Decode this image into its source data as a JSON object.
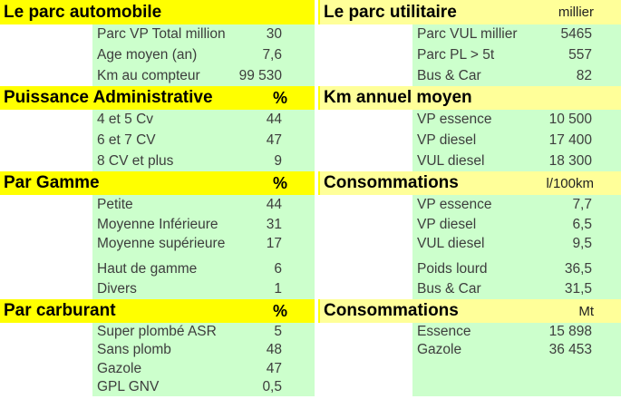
{
  "colors": {
    "header_yellow": "#FFFF00",
    "header_pale_yellow": "#FFFF99",
    "cell_green": "#CCFFCC"
  },
  "left_sections": [
    {
      "title": "Le parc automobile",
      "unit": "",
      "rows": [
        {
          "label": "Parc VP Total million",
          "value": "30"
        },
        {
          "label": "Age moyen (an)",
          "value": "7,6"
        },
        {
          "label": "Km au compteur",
          "value": "99 530"
        }
      ]
    },
    {
      "title": "Puissance Administrative",
      "unit": "%",
      "rows": [
        {
          "label": "4 et 5 Cv",
          "value": "44"
        },
        {
          "label": "6 et 7 CV",
          "value": "47"
        },
        {
          "label": "8 CV et plus",
          "value": "9"
        }
      ]
    },
    {
      "title": "Par Gamme",
      "unit": "%",
      "rows": [
        {
          "label": "Petite",
          "value": "44"
        },
        {
          "label": "Moyenne Inférieure",
          "value": "31"
        },
        {
          "label": "Moyenne supérieure",
          "value": "17"
        },
        {
          "label": "Haut de gamme",
          "value": "6"
        },
        {
          "label": "Divers",
          "value": "1"
        }
      ]
    },
    {
      "title": "Par carburant",
      "unit": "%",
      "rows": [
        {
          "label": "Super plombé ASR",
          "value": "5"
        },
        {
          "label": "Sans plomb",
          "value": "48"
        },
        {
          "label": "Gazole",
          "value": "47"
        },
        {
          "label": "GPL GNV",
          "value": "0,5"
        }
      ]
    }
  ],
  "right_sections": [
    {
      "title": "Le parc utilitaire",
      "unit": "millier",
      "rows": [
        {
          "label": "Parc VUL millier",
          "value": "5465"
        },
        {
          "label": "Parc PL > 5t",
          "value": "557"
        },
        {
          "label": "Bus & Car",
          "value": "82"
        }
      ]
    },
    {
      "title": "Km annuel moyen",
      "unit": "",
      "rows": [
        {
          "label": "VP essence",
          "value": "10 500"
        },
        {
          "label": "VP diesel",
          "value": "17 400"
        },
        {
          "label": "VUL diesel",
          "value": "18 300"
        }
      ]
    },
    {
      "title": "Consommations",
      "unit": "l/100km",
      "rows": [
        {
          "label": "VP essence",
          "value": "7,7"
        },
        {
          "label": "VP diesel",
          "value": "6,5"
        },
        {
          "label": "VUL diesel",
          "value": "9,5"
        },
        {
          "label": "Poids lourd",
          "value": "36,5"
        },
        {
          "label": "Bus & Car",
          "value": "31,5"
        }
      ]
    },
    {
      "title": "Consommations",
      "unit": "Mt",
      "rows": [
        {
          "label": "Essence",
          "value": "15 898"
        },
        {
          "label": "Gazole",
          "value": "36 453"
        },
        {
          "label": "",
          "value": ""
        },
        {
          "label": "",
          "value": ""
        }
      ]
    }
  ]
}
